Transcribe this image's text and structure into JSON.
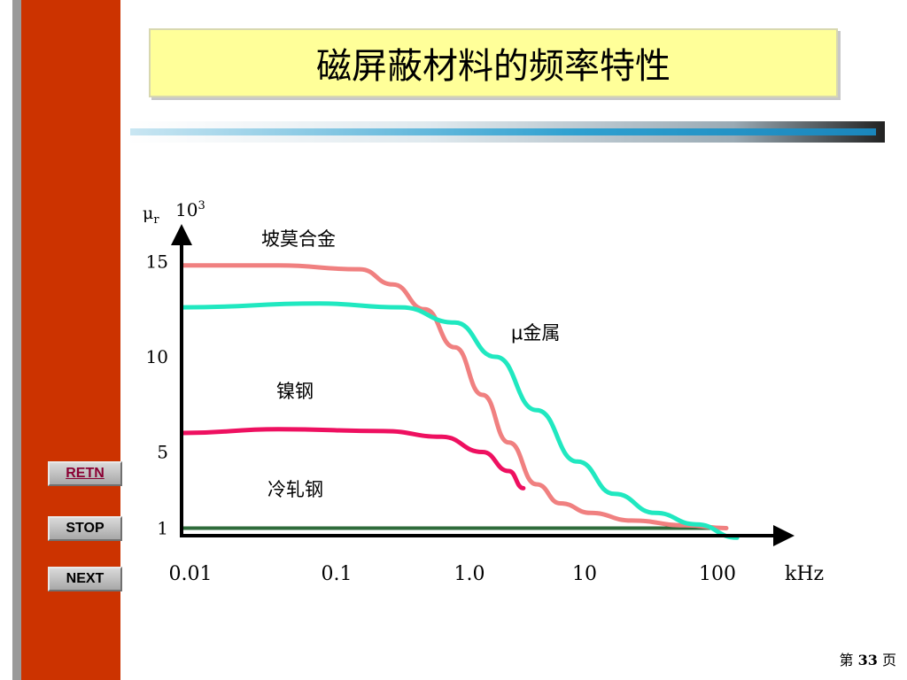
{
  "slide": {
    "title": "磁屏蔽材料的频率特性",
    "page_prefix": "第",
    "page_number": "33",
    "page_suffix": "页"
  },
  "nav": {
    "retn": "RETN",
    "stop": "STOP",
    "next": "NEXT"
  },
  "colors": {
    "sidebar": "#cc3300",
    "title_bg": "#ffff99",
    "permalloy": "#f08080",
    "mu_metal": "#20e8c0",
    "nickel_steel": "#ee1060",
    "cold_rolled_steel": "#2e6b3a"
  },
  "chart_data": {
    "type": "line",
    "xscale": "log",
    "x_ticks": [
      "0.01",
      "0.1",
      "1.0",
      "10",
      "100"
    ],
    "x_tick_values": [
      0.01,
      0.1,
      1,
      10,
      100
    ],
    "xlabel": "kHz",
    "ylabel_symbol": "μ",
    "ylabel_subscript": "r",
    "ylabel_scale_base": "10",
    "ylabel_scale_exp": "3",
    "y_ticks": [
      "15",
      "10",
      "5",
      "1"
    ],
    "y_tick_values": [
      15,
      10,
      5,
      1
    ],
    "ylim": [
      0,
      17
    ],
    "series": [
      {
        "name": "坡莫合金",
        "color": "#f08080",
        "points": [
          [
            0.01,
            14.8
          ],
          [
            0.05,
            14.8
          ],
          [
            0.2,
            14.6
          ],
          [
            0.35,
            13.8
          ],
          [
            0.6,
            12.5
          ],
          [
            1.0,
            10.5
          ],
          [
            1.6,
            8.0
          ],
          [
            2.5,
            5.5
          ],
          [
            4.0,
            3.3
          ],
          [
            6.0,
            2.3
          ],
          [
            10,
            1.8
          ],
          [
            20,
            1.4
          ],
          [
            50,
            1.15
          ],
          [
            100,
            1.0
          ]
        ]
      },
      {
        "name": "μ金属",
        "color": "#20e8c0",
        "points": [
          [
            0.01,
            12.6
          ],
          [
            0.1,
            12.8
          ],
          [
            0.4,
            12.6
          ],
          [
            1.0,
            11.8
          ],
          [
            2.0,
            10.0
          ],
          [
            4.0,
            7.2
          ],
          [
            8.0,
            4.5
          ],
          [
            15,
            2.8
          ],
          [
            30,
            1.8
          ],
          [
            60,
            1.2
          ],
          [
            120,
            0.5
          ]
        ]
      },
      {
        "name": "镍钢",
        "color": "#ee1060",
        "points": [
          [
            0.01,
            6.0
          ],
          [
            0.05,
            6.2
          ],
          [
            0.3,
            6.1
          ],
          [
            0.8,
            5.8
          ],
          [
            1.6,
            5.0
          ],
          [
            2.5,
            4.0
          ],
          [
            3.2,
            3.1
          ]
        ]
      },
      {
        "name": "冷轧钢",
        "color": "#2e6b3a",
        "points": [
          [
            0.01,
            1.0
          ],
          [
            100,
            1.0
          ]
        ]
      }
    ]
  }
}
